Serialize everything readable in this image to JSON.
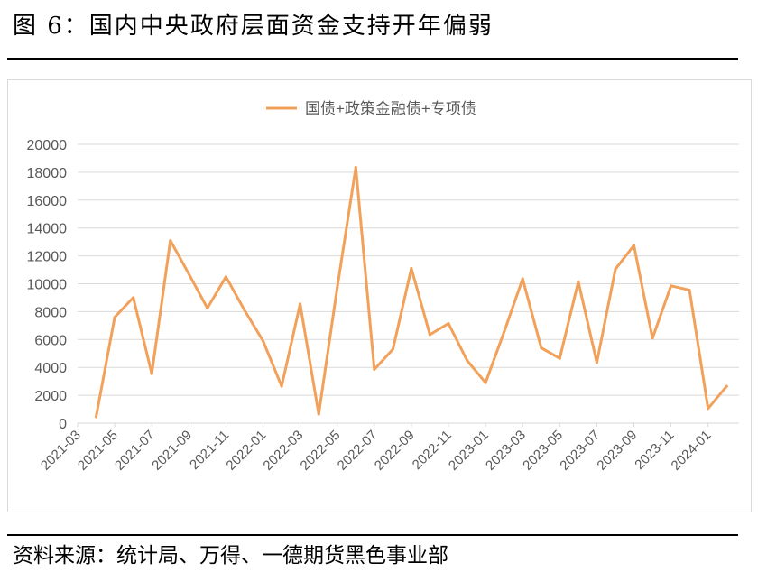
{
  "figure_title": "图 6：国内中央政府层面资金支持开年偏弱",
  "source": "资料来源：统计局、万得、一德期货黑色事业部",
  "colors": {
    "series": "#F2A15B",
    "grid": "#d9d9d9",
    "axis_text": "#595959"
  },
  "chart_data": {
    "type": "line",
    "x": [
      "2021-04",
      "2021-05",
      "2021-06",
      "2021-07",
      "2021-08",
      "2021-09",
      "2021-10",
      "2021-11",
      "2021-12",
      "2022-01",
      "2022-02",
      "2022-03",
      "2022-04",
      "2022-05",
      "2022-06",
      "2022-07",
      "2022-08",
      "2022-09",
      "2022-10",
      "2022-11",
      "2022-12",
      "2023-01",
      "2023-02",
      "2023-03",
      "2023-04",
      "2023-05",
      "2023-06",
      "2023-07",
      "2023-08",
      "2023-09",
      "2023-10",
      "2023-11",
      "2023-12",
      "2024-01",
      "2024-02"
    ],
    "x_tick_labels": [
      "2021-03",
      "2021-05",
      "2021-07",
      "2021-09",
      "2021-11",
      "2022-01",
      "2022-03",
      "2022-05",
      "2022-07",
      "2022-09",
      "2022-11",
      "2023-01",
      "2023-03",
      "2023-05",
      "2023-07",
      "2023-09",
      "2023-11",
      "2024-01"
    ],
    "series": [
      {
        "name": "国债+政策金融债+专项债",
        "values": [
          450,
          7600,
          9000,
          3550,
          13100,
          10700,
          8250,
          10500,
          8100,
          5900,
          2650,
          8550,
          650,
          9700,
          18350,
          3850,
          5300,
          11100,
          6350,
          7150,
          4500,
          2900,
          6550,
          10350,
          5400,
          4650,
          10150,
          4350,
          11050,
          12750,
          6100,
          9850,
          9550,
          1050,
          2650
        ]
      }
    ],
    "ylim": [
      0,
      20000
    ],
    "yticks": [
      0,
      2000,
      4000,
      6000,
      8000,
      10000,
      12000,
      14000,
      16000,
      18000,
      20000
    ],
    "grid": true,
    "legend": "top-center"
  }
}
